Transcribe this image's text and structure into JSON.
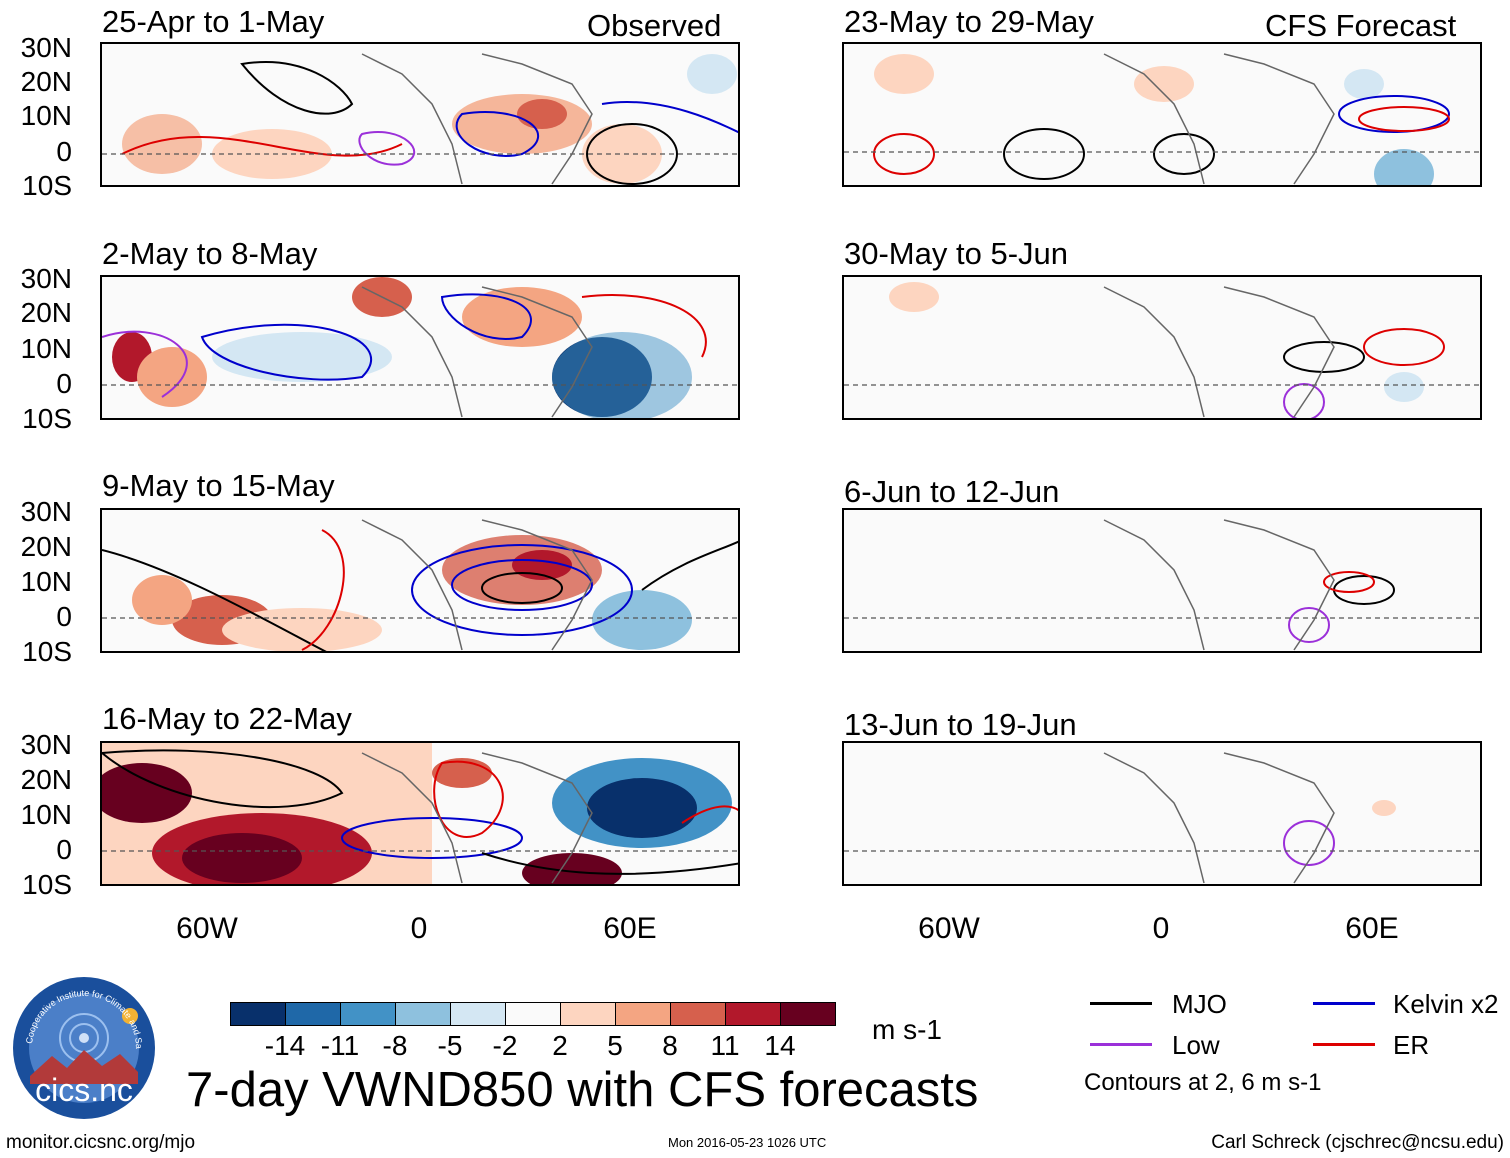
{
  "headers": {
    "observed": "Observed",
    "forecast": "CFS Forecast"
  },
  "panels": {
    "left": [
      "25-Apr to 1-May",
      "2-May to 8-May",
      "9-May to 15-May",
      "16-May to 22-May"
    ],
    "right": [
      "23-May to 29-May",
      "30-May to 5-Jun",
      "6-Jun to 12-Jun",
      "13-Jun to 19-Jun"
    ]
  },
  "lat_labels": [
    "30N",
    "20N",
    "10N",
    "0",
    "10S"
  ],
  "lon_labels": [
    "60W",
    "0",
    "60E"
  ],
  "colorbar": {
    "colors": [
      "#08306b",
      "#1f68a8",
      "#4292c6",
      "#8ec1de",
      "#d4e7f3",
      "#fafafa",
      "#fdd5c0",
      "#f4a582",
      "#d6604d",
      "#b2182b",
      "#67001f"
    ],
    "labels": [
      "-14",
      "-11",
      "-8",
      "-5",
      "-2",
      "2",
      "5",
      "8",
      "11",
      "14"
    ],
    "unit": "m s-1"
  },
  "title": "7-day VWND850 with CFS forecasts",
  "legend": {
    "items": [
      {
        "label": "MJO",
        "color": "#000000"
      },
      {
        "label": "Kelvin x2",
        "color": "#0000cc"
      },
      {
        "label": "Low",
        "color": "#9b30d9"
      },
      {
        "label": "ER",
        "color": "#dd0000"
      }
    ],
    "note": "Contours at 2, 6 m s-1"
  },
  "logo_text": "cics.nc",
  "logo_ring_text": "Cooperative Institute for Climate and Satellites",
  "footer": {
    "url": "monitor.cicsnc.org/mjo",
    "timestamp": "Mon 2016-05-23 1026 UTC",
    "author": "Carl Schreck (cjschrec@ncsu.edu)"
  }
}
